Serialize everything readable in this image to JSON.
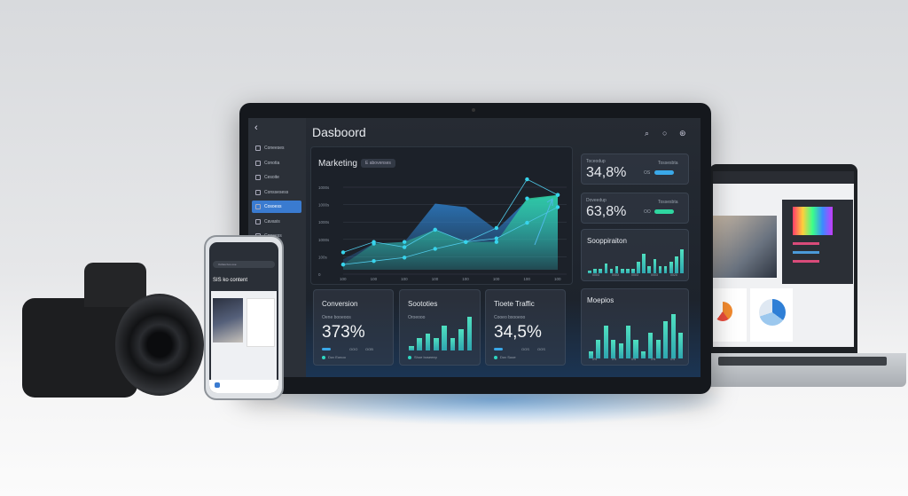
{
  "tablet": {
    "title": "Dasboord",
    "header_icons": [
      "search-icon",
      "chat-icon",
      "settings-icon"
    ],
    "sidebar": {
      "items": [
        {
          "label": "Coneeses"
        },
        {
          "label": "Conotia"
        },
        {
          "label": "Cesoite"
        },
        {
          "label": "Conssesess"
        },
        {
          "label": "Cosoess",
          "active": true
        },
        {
          "label": "Cavasis"
        },
        {
          "label": "Coneess"
        }
      ]
    },
    "marketing": {
      "title": "Marketing",
      "badge": "E abovenses"
    },
    "stat_cards": [
      {
        "label": "Toceodup",
        "value": "34,8%",
        "side_label": "Tossesbta",
        "side_code": "OS",
        "color": "#3aa8e8"
      },
      {
        "label": "Doveedup",
        "value": "63,8%",
        "side_label": "Tossesbta",
        "side_code": "OO",
        "color": "#2fd6a0"
      }
    ],
    "bar_cards": [
      {
        "title": "Sooppiraiton",
        "ticks": [
          "0003",
          "0003",
          "0003",
          "0003",
          "0020"
        ]
      },
      {
        "title": "Moepios",
        "ticks": [
          "0%",
          "0%",
          "0%",
          "0%",
          "0%"
        ]
      }
    ],
    "bottom_cards": [
      {
        "title": "Conversion",
        "sub": "Oene booeoos",
        "value": "373%",
        "codes": [
          "OOO",
          "OOB"
        ],
        "legend": "Dov Eonoo"
      },
      {
        "title": "Soototies",
        "sub": "Oroeooo",
        "legend": "Shoe boseeep"
      },
      {
        "title": "Tioete Traffic",
        "sub": "Cooeo bxooeoo",
        "value": "34,5%",
        "codes": [
          "OOS",
          "OOS"
        ],
        "legend": "Dov Sooe"
      }
    ],
    "accent": "#2fd6a0",
    "accent_blue": "#3aa8e8"
  },
  "phone": {
    "headline": "SIS ko content",
    "search": "Oobas boo ooe"
  },
  "chart_data": [
    {
      "type": "area",
      "title": "Marketing",
      "y_ticks": [
        "1000s",
        "1000s",
        "1000s",
        "1000s",
        "100s",
        "0"
      ],
      "x_ticks": [
        "100",
        "100",
        "100",
        "100",
        "100",
        "100",
        "100",
        "100"
      ],
      "ylim": [
        0,
        5
      ],
      "series": [
        {
          "values": [
            0.6,
            1.5,
            1.6,
            3.8,
            3.6,
            2.3,
            4.0,
            4.3
          ],
          "color": "#2f86d6"
        },
        {
          "values": [
            0.3,
            1.5,
            1.6,
            2.3,
            1.6,
            1.6,
            4.1,
            4.3
          ],
          "color": "#2fd6a0"
        },
        {
          "values": [
            1.0,
            1.6,
            1.3,
            2.3,
            1.6,
            2.4,
            5.2,
            4.3
          ],
          "color": "#4fc9e8"
        },
        {
          "values": [
            0.3,
            0.5,
            0.7,
            1.2,
            1.6,
            1.8,
            2.7,
            3.6
          ],
          "color": "#4fc9e8"
        }
      ]
    },
    {
      "type": "bar",
      "values": [
        1,
        2,
        2,
        4,
        2,
        3,
        2,
        2,
        2,
        5,
        8,
        3,
        6,
        3,
        3,
        5,
        7,
        10
      ]
    },
    {
      "type": "bar",
      "values": [
        2,
        5,
        9,
        5,
        4,
        9,
        5,
        2,
        7,
        5,
        10,
        12,
        7
      ]
    },
    {
      "type": "bar",
      "values": [
        1,
        3,
        4,
        3,
        6,
        3,
        5,
        8
      ]
    }
  ]
}
